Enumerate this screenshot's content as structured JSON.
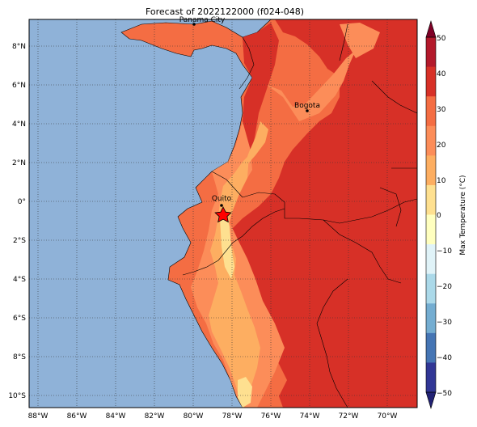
{
  "title": "Forecast of 2022122000 (f024-048)",
  "colorbar": {
    "label": "Max Temperature (°C)",
    "ticks": [
      "50",
      "40",
      "30",
      "20",
      "10",
      "0",
      "−10",
      "−20",
      "−30",
      "−40",
      "−50"
    ],
    "colors": [
      "#7f0026",
      "#b3192b",
      "#d73027",
      "#f46d43",
      "#fc8d59",
      "#fdae61",
      "#fee090",
      "#ffffbf",
      "#e0f3f8",
      "#abd9e9",
      "#74add1",
      "#4575b4",
      "#313695",
      "#222274"
    ]
  },
  "lat_ticks": [
    "8°N",
    "6°N",
    "4°N",
    "2°N",
    "0°",
    "2°S",
    "4°S",
    "6°S",
    "8°S",
    "10°S"
  ],
  "lon_ticks": [
    "88°W",
    "86°W",
    "84°W",
    "82°W",
    "80°W",
    "78°W",
    "76°W",
    "74°W",
    "72°W",
    "70°W"
  ],
  "cities": [
    {
      "name": "Panama City"
    },
    {
      "name": "Bogota"
    },
    {
      "name": "Quito"
    }
  ],
  "colors": {
    "ocean": "#8fb2d8",
    "land_base": "#f46d43",
    "land_hot": "#d73027",
    "land_warm": "#fc8d59",
    "land_mild": "#fdae61",
    "land_cool": "#fee090",
    "marker": "#ff0000"
  }
}
